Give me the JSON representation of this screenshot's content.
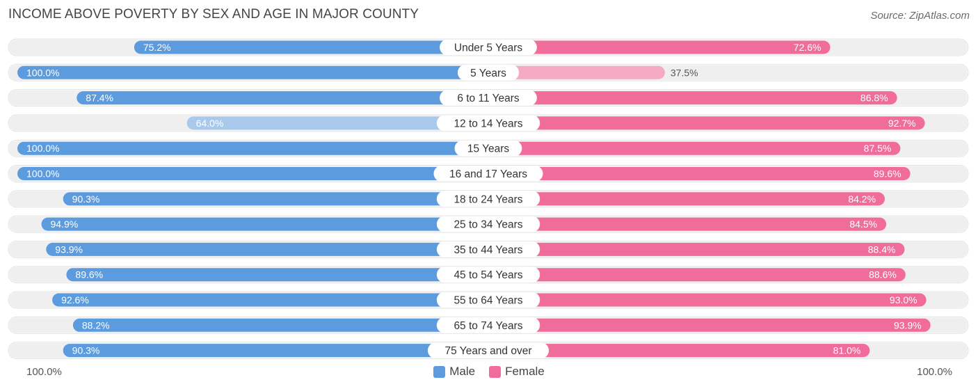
{
  "title": "INCOME ABOVE POVERTY BY SEX AND AGE IN MAJOR COUNTY",
  "source": "Source: ZipAtlas.com",
  "axis": {
    "left_label": "100.0%",
    "right_label": "100.0%"
  },
  "legend": [
    {
      "label": "Male",
      "color": "#5b9bde"
    },
    {
      "label": "Female",
      "color": "#f06c9a"
    }
  ],
  "colors": {
    "male_strong": "#5b9bde",
    "male_light": "#a9c9ec",
    "female_strong": "#f06c9a",
    "female_light": "#f6a9c2",
    "track": "#efefef"
  },
  "chart_data": {
    "type": "bar",
    "orientation": "horizontal-diverging",
    "title": "INCOME ABOVE POVERTY BY SEX AND AGE IN MAJOR COUNTY",
    "categories": [
      "Under 5 Years",
      "5 Years",
      "6 to 11 Years",
      "12 to 14 Years",
      "15 Years",
      "16 and 17 Years",
      "18 to 24 Years",
      "25 to 34 Years",
      "35 to 44 Years",
      "45 to 54 Years",
      "55 to 64 Years",
      "65 to 74 Years",
      "75 Years and over"
    ],
    "series": [
      {
        "name": "Male",
        "values": [
          75.2,
          100.0,
          87.4,
          64.0,
          100.0,
          100.0,
          90.3,
          94.9,
          93.9,
          89.6,
          92.6,
          88.2,
          90.3
        ],
        "labels": [
          "75.2%",
          "100.0%",
          "87.4%",
          "64.0%",
          "100.0%",
          "100.0%",
          "90.3%",
          "94.9%",
          "93.9%",
          "89.6%",
          "92.6%",
          "88.2%",
          "90.3%"
        ]
      },
      {
        "name": "Female",
        "values": [
          72.6,
          37.5,
          86.8,
          92.7,
          87.5,
          89.6,
          84.2,
          84.5,
          88.4,
          88.6,
          93.0,
          93.9,
          81.0
        ],
        "labels": [
          "72.6%",
          "37.5%",
          "86.8%",
          "92.7%",
          "87.5%",
          "89.6%",
          "84.2%",
          "84.5%",
          "88.4%",
          "88.6%",
          "93.0%",
          "93.9%",
          "81.0%"
        ]
      }
    ],
    "xlim": [
      0,
      100
    ],
    "xlabel_left": "100.0%",
    "xlabel_right": "100.0%"
  }
}
